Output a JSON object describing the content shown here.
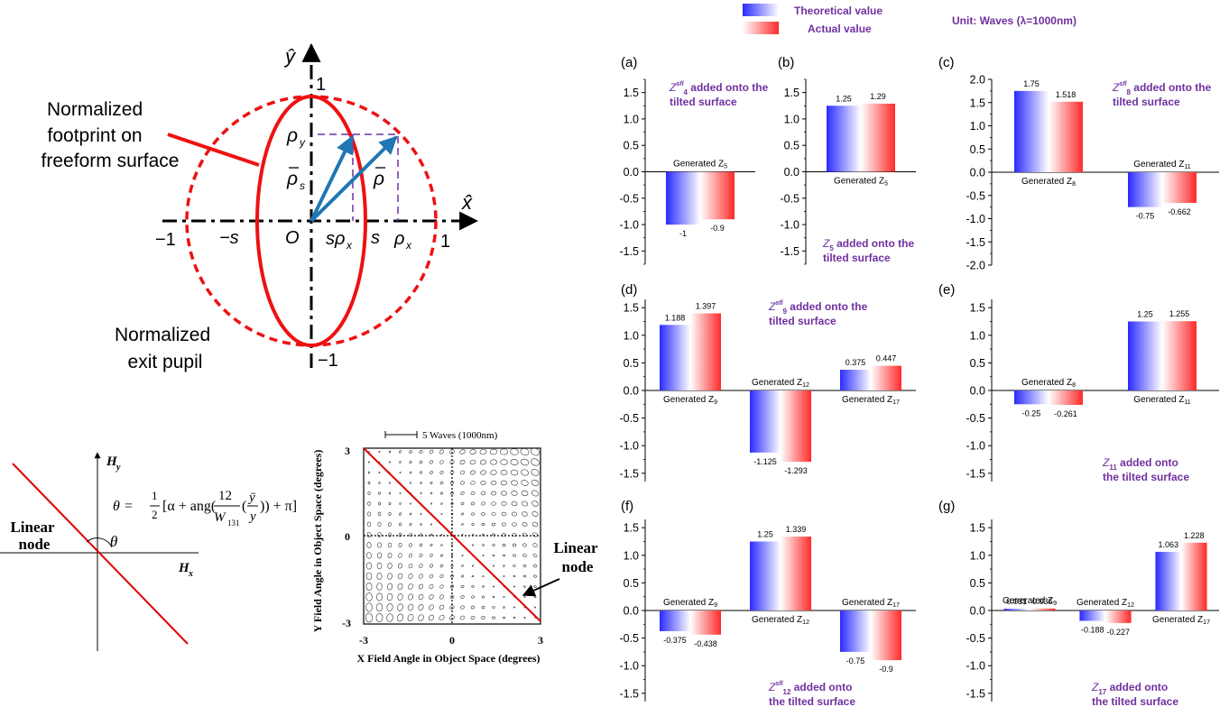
{
  "legend": {
    "theoretical": "Theoretical value",
    "actual": "Actual value",
    "unit": "Unit: Waves (λ=1000nm)",
    "color_theoretical_edge": "#3333ff",
    "color_actual_edge": "#ff3333",
    "text_color": "#7030a0"
  },
  "footprint": {
    "axis_y_hat": "ŷ",
    "axis_x_hat": "x̂",
    "label_footprint": [
      "Normalized",
      "footprint on",
      "freeform surface"
    ],
    "label_pupil": [
      "Normalized",
      "exit pupil"
    ],
    "ticks": {
      "one_top": "1",
      "minus_one_bottom": "−1",
      "minus_one_left": "−1",
      "one_right": "1",
      "minus_s": "−s",
      "s": "s",
      "origin": "O"
    },
    "vectors": {
      "rho_y": "ρ",
      "rho_y_sub": "y",
      "rho_s": "ρ",
      "rho_s_sub": "s",
      "rho": "ρ",
      "s_rho_x": "sρ",
      "s_rho_x_sub": "x",
      "rho_x": "ρ",
      "rho_x_sub": "x"
    },
    "red": "#ee1111",
    "blue": "#1f77b4",
    "purple": "#7030a0"
  },
  "node_diagram": {
    "label": [
      "Linear",
      "node"
    ],
    "hy": "H",
    "hy_sub": "y",
    "hx": "H",
    "hx_sub": "x",
    "theta": "θ",
    "formula": {
      "lhs": "θ =",
      "half_num": "1",
      "half_den": "2",
      "body1": "[α + ang(",
      "frac_num": "12",
      "frac_den": "W",
      "frac_den_sub": "131",
      "body2": "(",
      "ybar": "ȳ",
      "y": "y",
      "body3": ")) + π]"
    }
  },
  "field_map": {
    "scale_label": "5 Waves (1000nm)",
    "x_label": "X Field Angle in Object Space (degrees)",
    "y_label": "Y Field Angle in Object Space (degrees)",
    "x_ticks": [
      "-3",
      "0",
      "3"
    ],
    "y_ticks": [
      "3",
      "0",
      "-3"
    ],
    "node_label": [
      "Linear",
      "node"
    ],
    "xlim": [
      -3,
      3
    ],
    "ylim": [
      -3,
      3
    ],
    "grid_n": 17
  },
  "chart_data": [
    {
      "panel": "(a)",
      "type": "bar",
      "ylim": [
        -1.75,
        1.75
      ],
      "yticks": [
        1.5,
        1.0,
        0.5,
        0.0,
        -0.5,
        -1.0,
        -1.5
      ],
      "annotation": {
        "z": "Z",
        "sub": "4",
        "sup": "sfl",
        "text": " added onto the",
        "line2": "tilted surface"
      },
      "groups": [
        {
          "label": "Generated Z",
          "sub": "5",
          "theoretical": -1,
          "actual": -0.9,
          "theoretical_label": "-1",
          "actual_label": "-0.9"
        }
      ]
    },
    {
      "panel": "(b)",
      "type": "bar",
      "ylim": [
        -1.75,
        1.75
      ],
      "yticks": [
        1.5,
        1.0,
        0.5,
        0.0,
        -0.5,
        -1.0,
        -1.5
      ],
      "annotation": {
        "z": "Z",
        "sub": "5",
        "sup": "",
        "text": "  added onto the",
        "line2": "tilted surface"
      },
      "groups": [
        {
          "label": "Generated Z",
          "sub": "5",
          "theoretical": 1.25,
          "actual": 1.29,
          "theoretical_label": "1.25",
          "actual_label": "1.29"
        }
      ]
    },
    {
      "panel": "(c)",
      "type": "bar",
      "ylim": [
        -2.0,
        2.0
      ],
      "yticks": [
        2.0,
        1.5,
        1.0,
        0.5,
        0.0,
        -0.5,
        -1.0,
        -1.5,
        -2.0
      ],
      "annotation": {
        "z": "Z",
        "sub": "8",
        "sup": "sfl",
        "text": " added onto the",
        "line2": "tilted surface"
      },
      "groups": [
        {
          "label": "Generated Z",
          "sub": "8",
          "theoretical": 1.75,
          "actual": 1.518,
          "theoretical_label": "1.75",
          "actual_label": "1.518"
        },
        {
          "label": "Generated Z",
          "sub": "11",
          "theoretical": -0.75,
          "actual": -0.662,
          "theoretical_label": "-0.75",
          "actual_label": "-0.662"
        }
      ]
    },
    {
      "panel": "(d)",
      "type": "bar",
      "ylim": [
        -1.65,
        1.65
      ],
      "yticks": [
        1.5,
        1.0,
        0.5,
        0.0,
        -0.5,
        -1.0,
        -1.5
      ],
      "annotation": {
        "z": "Z",
        "sub": "9",
        "sup": "sfl",
        "text": " added onto the",
        "line2": "tilted surface"
      },
      "groups": [
        {
          "label": "Generated Z",
          "sub": "9",
          "theoretical": 1.188,
          "actual": 1.397,
          "theoretical_label": "1.188",
          "actual_label": "1.397"
        },
        {
          "label": "Generated Z",
          "sub": "12",
          "theoretical": -1.125,
          "actual": -1.293,
          "theoretical_label": "-1.125",
          "actual_label": "-1.293"
        },
        {
          "label": "Generated Z",
          "sub": "17",
          "theoretical": 0.375,
          "actual": 0.447,
          "theoretical_label": "0.375",
          "actual_label": "0.447"
        }
      ]
    },
    {
      "panel": "(e)",
      "type": "bar",
      "ylim": [
        -1.65,
        1.65
      ],
      "yticks": [
        1.5,
        1.0,
        0.5,
        0.0,
        -0.5,
        -1.0,
        -1.5
      ],
      "annotation": {
        "z": "Z",
        "sub": "11",
        "sup": "",
        "text": "  added onto",
        "line2": "the tilted surface"
      },
      "groups": [
        {
          "label": "Generated Z",
          "sub": "8",
          "theoretical": -0.25,
          "actual": -0.261,
          "theoretical_label": "-0.25",
          "actual_label": "-0.261"
        },
        {
          "label": "Generated Z",
          "sub": "11",
          "theoretical": 1.25,
          "actual": 1.255,
          "theoretical_label": "1.25",
          "actual_label": "1.255"
        }
      ]
    },
    {
      "panel": "(f)",
      "type": "bar",
      "ylim": [
        -1.65,
        1.65
      ],
      "yticks": [
        1.5,
        1.0,
        0.5,
        0.0,
        -0.5,
        -1.0,
        -1.5
      ],
      "annotation": {
        "z": "Z",
        "sub": "12",
        "sup": "sfl",
        "text": "  added onto",
        "line2": "the tilted surface"
      },
      "groups": [
        {
          "label": "Generated Z",
          "sub": "9",
          "theoretical": -0.375,
          "actual": -0.438,
          "theoretical_label": "-0.375",
          "actual_label": "-0.438"
        },
        {
          "label": "Generated Z",
          "sub": "12",
          "theoretical": 1.25,
          "actual": 1.339,
          "theoretical_label": "1.25",
          "actual_label": "1.339"
        },
        {
          "label": "Generated Z",
          "sub": "17",
          "theoretical": -0.75,
          "actual": -0.9,
          "theoretical_label": "-0.75",
          "actual_label": "-0.9"
        }
      ]
    },
    {
      "panel": "(g)",
      "type": "bar",
      "ylim": [
        -1.65,
        1.65
      ],
      "yticks": [
        1.5,
        1.0,
        0.5,
        0.0,
        -0.5,
        -1.0,
        -1.5
      ],
      "annotation": {
        "z": "Z",
        "sub": "17",
        "sup": "",
        "text": "  added onto",
        "line2": "the tilted surface"
      },
      "groups": [
        {
          "label": "Generated Z",
          "sub": "9",
          "theoretical": 0.031,
          "actual": 0.036,
          "theoretical_label": "0.031",
          "actual_label": "0.036"
        },
        {
          "label": "Generated Z",
          "sub": "12",
          "theoretical": -0.188,
          "actual": -0.227,
          "theoretical_label": "-0.188",
          "actual_label": "-0.227"
        },
        {
          "label": "Generated Z",
          "sub": "17",
          "theoretical": 1.063,
          "actual": 1.228,
          "theoretical_label": "1.063",
          "actual_label": "1.228"
        }
      ]
    }
  ]
}
